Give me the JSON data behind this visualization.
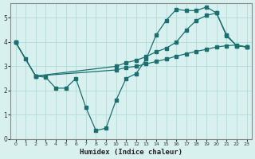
{
  "xlabel": "Humidex (Indice chaleur)",
  "bg_color": "#d8f0ee",
  "grid_color": "#a8d8d4",
  "line_color": "#1a7070",
  "xlim": [
    -0.5,
    23.5
  ],
  "ylim": [
    0,
    5.6
  ],
  "xticks": [
    0,
    1,
    2,
    3,
    4,
    5,
    6,
    7,
    8,
    9,
    10,
    11,
    12,
    13,
    14,
    15,
    16,
    17,
    18,
    19,
    20,
    21,
    22,
    23
  ],
  "yticks": [
    0,
    1,
    2,
    3,
    4,
    5
  ],
  "line1_x": [
    0,
    1,
    2,
    3,
    4,
    5,
    6,
    7,
    8,
    9,
    10,
    11,
    12,
    13,
    14,
    15,
    16,
    17,
    18,
    19,
    20,
    21,
    22,
    23
  ],
  "line1_y": [
    4.0,
    3.3,
    2.6,
    2.55,
    2.1,
    2.1,
    2.5,
    1.3,
    0.35,
    0.45,
    1.6,
    2.5,
    2.7,
    3.3,
    4.3,
    4.9,
    5.35,
    5.3,
    5.3,
    5.45,
    5.2,
    4.25,
    3.85,
    3.8
  ],
  "line2_x": [
    0,
    2,
    10,
    11,
    12,
    13,
    14,
    15,
    16,
    17,
    18,
    19,
    20,
    21,
    22,
    23
  ],
  "line2_y": [
    4.0,
    2.6,
    3.0,
    3.15,
    3.25,
    3.4,
    3.6,
    3.75,
    4.0,
    4.5,
    4.9,
    5.1,
    5.2,
    4.3,
    3.85,
    3.8
  ],
  "line3_x": [
    0,
    2,
    10,
    11,
    12,
    13,
    14,
    15,
    16,
    17,
    18,
    19,
    20,
    21,
    22,
    23
  ],
  "line3_y": [
    4.0,
    2.6,
    2.85,
    2.95,
    3.0,
    3.1,
    3.2,
    3.3,
    3.42,
    3.52,
    3.62,
    3.7,
    3.8,
    3.85,
    3.88,
    3.8
  ]
}
